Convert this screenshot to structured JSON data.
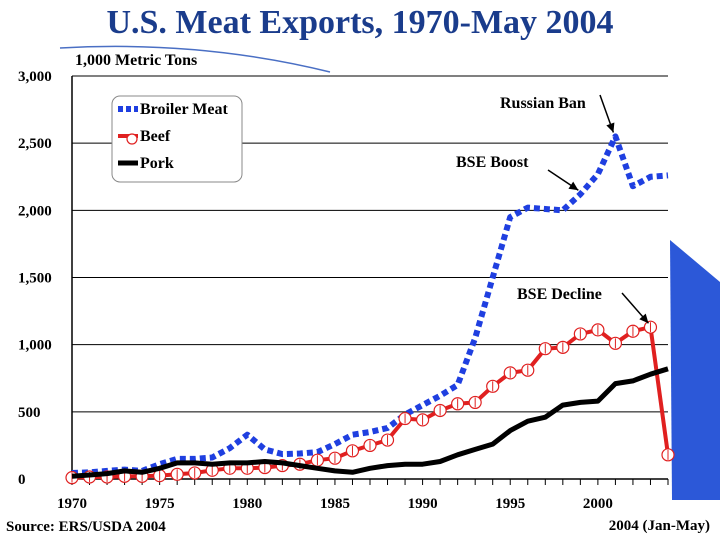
{
  "chart_data": {
    "type": "line",
    "title": "U.S. Meat Exports, 1970-May 2004",
    "ylabel": "1,000 Metric Tons",
    "source": "Source: ERS/USDA 2004",
    "ylim": [
      0,
      3000
    ],
    "yticks": [
      "0",
      "500",
      "1,000",
      "1,500",
      "2,000",
      "2,500",
      "3,000"
    ],
    "ytick_values": [
      0,
      500,
      1000,
      1500,
      2000,
      2500,
      3000
    ],
    "xticks": [
      "1970",
      "1975",
      "1980",
      "1985",
      "1990",
      "1995",
      "2000"
    ],
    "xtick_values": [
      1970,
      1975,
      1980,
      1985,
      1990,
      1995,
      2000
    ],
    "x_last_label": "2004 (Jan-May)",
    "x": [
      "1970",
      "1971",
      "1972",
      "1973",
      "1974",
      "1975",
      "1976",
      "1977",
      "1978",
      "1979",
      "1980",
      "1981",
      "1982",
      "1983",
      "1984",
      "1985",
      "1986",
      "1987",
      "1988",
      "1989",
      "1990",
      "1991",
      "1992",
      "1993",
      "1994",
      "1995",
      "1996",
      "1997",
      "1998",
      "1999",
      "2000",
      "2001",
      "2002",
      "2003",
      "2004 (Jan-May)"
    ],
    "grid": "horizontal",
    "legend_position": "top-left",
    "series": [
      {
        "name": "Broiler Meat",
        "color": "#1f3fe0",
        "style": "dotted",
        "values": [
          45,
          50,
          60,
          70,
          60,
          110,
          150,
          150,
          160,
          230,
          330,
          220,
          185,
          190,
          200,
          260,
          330,
          350,
          380,
          480,
          550,
          620,
          700,
          1050,
          1500,
          1950,
          2020,
          2010,
          2000,
          2120,
          2270,
          2550,
          2180,
          2250,
          2260
        ]
      },
      {
        "name": "Beef",
        "color": "#e02020",
        "style": "solid-circle",
        "values": [
          10,
          15,
          15,
          20,
          20,
          25,
          35,
          45,
          65,
          80,
          80,
          85,
          100,
          110,
          140,
          155,
          210,
          250,
          290,
          450,
          440,
          510,
          560,
          570,
          690,
          790,
          810,
          970,
          980,
          1080,
          1110,
          1010,
          1100,
          1130,
          180
        ]
      },
      {
        "name": "Pork",
        "color": "#000000",
        "style": "solid",
        "values": [
          20,
          30,
          40,
          60,
          50,
          80,
          120,
          120,
          110,
          120,
          120,
          130,
          120,
          100,
          80,
          60,
          50,
          80,
          100,
          110,
          110,
          130,
          180,
          220,
          260,
          360,
          430,
          460,
          550,
          570,
          580,
          710,
          730,
          780,
          820
        ]
      }
    ],
    "annotations": [
      {
        "text": "Russian Ban",
        "target_x": "2001",
        "target_y": 2550
      },
      {
        "text": "BSE Boost",
        "target_x": "1999",
        "target_y": 2120
      },
      {
        "text": "BSE Decline",
        "target_x": "2003",
        "target_y": 1130
      }
    ]
  }
}
